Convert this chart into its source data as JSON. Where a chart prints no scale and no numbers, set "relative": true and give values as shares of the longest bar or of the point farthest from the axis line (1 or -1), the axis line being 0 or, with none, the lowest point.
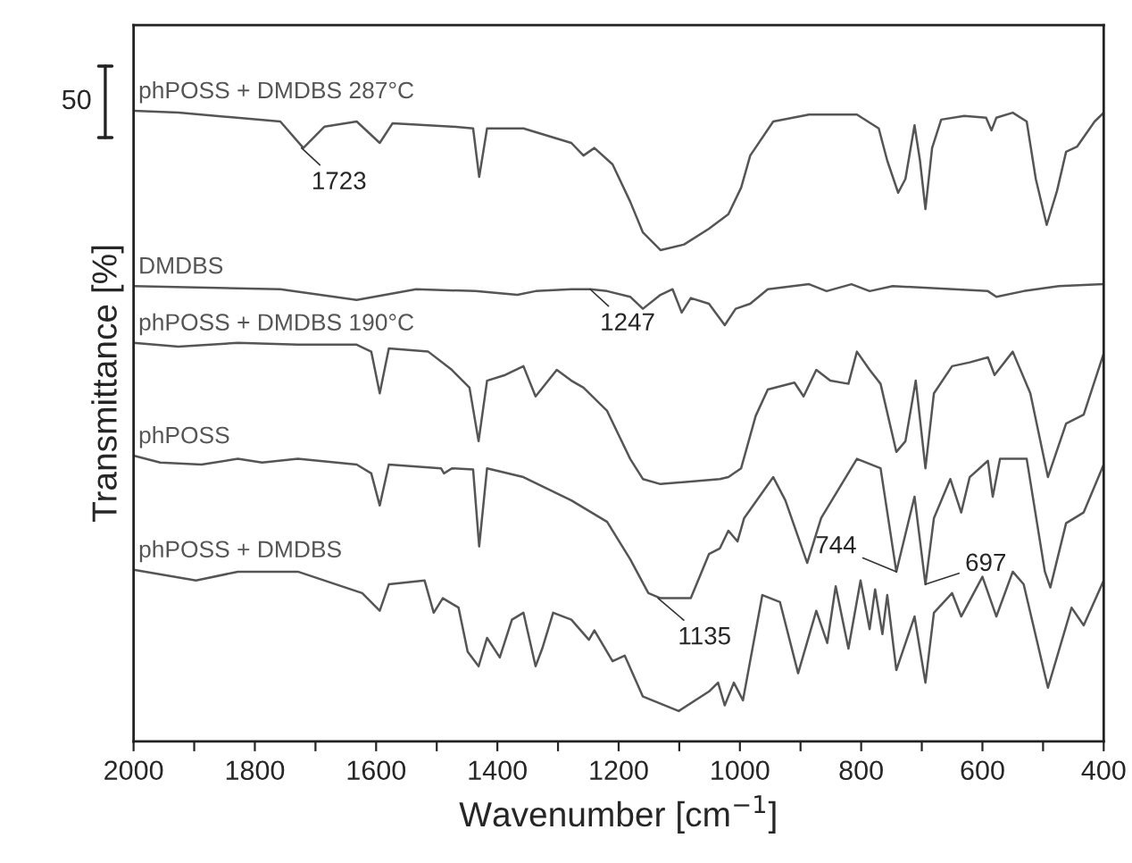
{
  "chart_data": {
    "type": "line",
    "relative": true,
    "xlabel": "Wavenumber [cm$^{−1}$]",
    "ylabel": "Transmittance [%]",
    "xlim": [
      2000,
      400
    ],
    "xticks": [
      2000,
      {
        "value": 1900,
        "label": null
      },
      1800,
      {
        "value": 1700,
        "label": null
      },
      1600,
      {
        "value": 1500,
        "label": null
      },
      1400,
      {
        "value": 1300,
        "label": null
      },
      1200,
      {
        "value": 1100,
        "label": null
      },
      1000,
      {
        "value": 900,
        "label": null
      },
      800,
      {
        "value": 700,
        "label": null
      },
      600,
      {
        "value": 500,
        "label": null
      },
      400
    ],
    "tick_labels": "x",
    "legend": false,
    "grid": false,
    "marker": "none",
    "line_style": "solid",
    "series": [
      {
        "name": "phPOSS + DMDBS 287°C",
        "color": "#555555",
        "x": [
          2000,
          1926,
          1758,
          1720,
          1685,
          1632,
          1594,
          1573,
          1475,
          1440,
          1430,
          1417,
          1357,
          1278,
          1258,
          1240,
          1210,
          1181,
          1160,
          1131,
          1092,
          1051,
          1019,
          998,
          983,
          945,
          886,
          807,
          771,
          757,
          739,
          727,
          712,
          703,
          694,
          683,
          668,
          630,
          594,
          585,
          577,
          550,
          527,
          512,
          494,
          477,
          462,
          444,
          415,
          400
        ],
        "values": [
          1.0,
          0.997,
          0.983,
          0.941,
          0.975,
          0.983,
          0.949,
          0.98,
          0.975,
          0.972,
          0.895,
          0.972,
          0.972,
          0.949,
          0.929,
          0.941,
          0.915,
          0.856,
          0.807,
          0.779,
          0.788,
          0.813,
          0.836,
          0.878,
          0.929,
          0.983,
          0.994,
          0.994,
          0.972,
          0.921,
          0.87,
          0.892,
          0.977,
          0.921,
          0.844,
          0.941,
          0.986,
          0.992,
          0.989,
          0.969,
          0.989,
          0.997,
          0.983,
          0.892,
          0.819,
          0.873,
          0.935,
          0.943,
          0.983,
          0.997
        ]
      },
      {
        "name": "DMDBS",
        "color": "#555555",
        "x": [
          2000,
          1758,
          1632,
          1534,
          1436,
          1367,
          1337,
          1278,
          1247,
          1219,
          1181,
          1160,
          1131,
          1111,
          1096,
          1081,
          1051,
          1025,
          1007,
          983,
          954,
          886,
          857,
          816,
          786,
          748,
          591,
          577,
          532,
          474,
          400
        ],
        "values": [
          0.722,
          0.717,
          0.7,
          0.717,
          0.714,
          0.708,
          0.714,
          0.717,
          0.717,
          0.714,
          0.705,
          0.686,
          0.708,
          0.717,
          0.68,
          0.703,
          0.694,
          0.66,
          0.686,
          0.694,
          0.717,
          0.725,
          0.714,
          0.725,
          0.714,
          0.722,
          0.714,
          0.705,
          0.714,
          0.722,
          0.725
        ]
      },
      {
        "name": "phPOSS + DMDBS 190°C",
        "color": "#555555",
        "x": [
          2000,
          1926,
          1828,
          1729,
          1632,
          1608,
          1594,
          1579,
          1514,
          1475,
          1446,
          1431,
          1417,
          1387,
          1357,
          1337,
          1302,
          1278,
          1258,
          1219,
          1181,
          1160,
          1131,
          1033,
          1019,
          998,
          974,
          954,
          910,
          895,
          874,
          851,
          821,
          807,
          786,
          768,
          742,
          727,
          710,
          694,
          680,
          650,
          621,
          591,
          580,
          550,
          521,
          492,
          462,
          433,
          400
        ],
        "values": [
          0.632,
          0.626,
          0.632,
          0.629,
          0.629,
          0.618,
          0.552,
          0.623,
          0.618,
          0.589,
          0.561,
          0.476,
          0.572,
          0.581,
          0.595,
          0.547,
          0.589,
          0.572,
          0.561,
          0.524,
          0.448,
          0.416,
          0.408,
          0.416,
          0.419,
          0.433,
          0.516,
          0.558,
          0.569,
          0.547,
          0.589,
          0.572,
          0.567,
          0.618,
          0.589,
          0.567,
          0.459,
          0.476,
          0.572,
          0.433,
          0.552,
          0.595,
          0.601,
          0.609,
          0.581,
          0.618,
          0.552,
          0.419,
          0.504,
          0.518,
          0.615
        ]
      },
      {
        "name": "phPOSS",
        "color": "#555555",
        "x": [
          2000,
          1956,
          1888,
          1828,
          1788,
          1729,
          1632,
          1608,
          1594,
          1579,
          1493,
          1488,
          1475,
          1440,
          1430,
          1417,
          1357,
          1278,
          1219,
          1181,
          1151,
          1131,
          1081,
          1051,
          1033,
          1019,
          1004,
          993,
          945,
          925,
          889,
          866,
          807,
          768,
          742,
          712,
          694,
          680,
          653,
          635,
          621,
          591,
          583,
          571,
          527,
          497,
          488,
          462,
          433,
          400
        ],
        "values": [
          0.453,
          0.442,
          0.439,
          0.448,
          0.442,
          0.448,
          0.439,
          0.425,
          0.374,
          0.439,
          0.433,
          0.425,
          0.433,
          0.431,
          0.309,
          0.433,
          0.419,
          0.382,
          0.348,
          0.289,
          0.235,
          0.227,
          0.227,
          0.297,
          0.306,
          0.334,
          0.317,
          0.354,
          0.419,
          0.382,
          0.283,
          0.354,
          0.448,
          0.433,
          0.269,
          0.388,
          0.249,
          0.354,
          0.416,
          0.363,
          0.419,
          0.445,
          0.388,
          0.448,
          0.448,
          0.269,
          0.244,
          0.346,
          0.363,
          0.439
        ]
      },
      {
        "name": "phPOSS + DMDBS",
        "color": "#555555",
        "x": [
          2000,
          1897,
          1828,
          1729,
          1623,
          1594,
          1579,
          1520,
          1505,
          1490,
          1464,
          1449,
          1431,
          1417,
          1396,
          1376,
          1357,
          1337,
          1326,
          1308,
          1278,
          1249,
          1240,
          1210,
          1190,
          1160,
          1101,
          1051,
          1036,
          1025,
          1010,
          995,
          963,
          934,
          904,
          874,
          856,
          842,
          821,
          801,
          786,
          777,
          765,
          757,
          742,
          712,
          694,
          680,
          650,
          635,
          600,
          577,
          550,
          532,
          492,
          453,
          433,
          400
        ],
        "values": [
          0.272,
          0.255,
          0.269,
          0.269,
          0.235,
          0.207,
          0.249,
          0.255,
          0.204,
          0.227,
          0.212,
          0.142,
          0.119,
          0.164,
          0.133,
          0.193,
          0.204,
          0.119,
          0.147,
          0.204,
          0.193,
          0.161,
          0.176,
          0.127,
          0.136,
          0.071,
          0.048,
          0.079,
          0.093,
          0.057,
          0.093,
          0.065,
          0.232,
          0.221,
          0.108,
          0.207,
          0.156,
          0.246,
          0.147,
          0.255,
          0.178,
          0.241,
          0.17,
          0.232,
          0.113,
          0.198,
          0.093,
          0.204,
          0.235,
          0.198,
          0.261,
          0.198,
          0.269,
          0.249,
          0.085,
          0.212,
          0.184,
          0.255
        ]
      }
    ],
    "annotations": [
      {
        "text": "1723",
        "x": 1723,
        "y": 0.941
      },
      {
        "text": "1247",
        "x": 1247,
        "y": 0.717
      },
      {
        "text": "1135",
        "x": 1135,
        "y": 0.227
      },
      {
        "text": "744",
        "x": 742,
        "y": 0.269
      },
      {
        "text": "697",
        "x": 694,
        "y": 0.249
      },
      "50"
    ]
  }
}
